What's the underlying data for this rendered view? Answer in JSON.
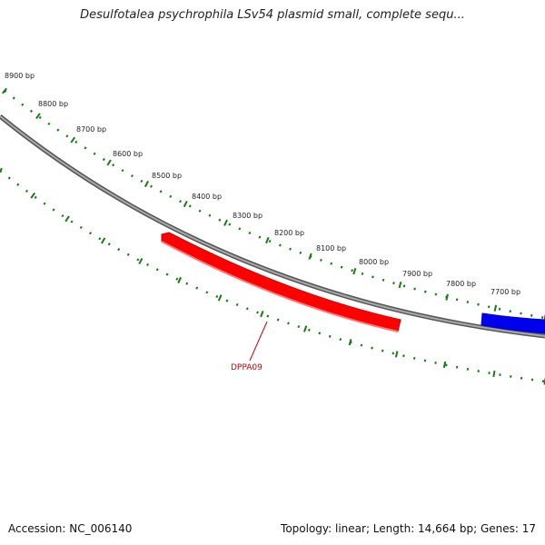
{
  "title": "Desulfotalea psychrophila LSv54 plasmid small, complete sequ...",
  "footer": {
    "accession": "Accession: NC_006140",
    "summary": "Topology: linear; Length: 14,664 bp; Genes: 17"
  },
  "ticks": [
    "8900 bp",
    "8800 bp",
    "8700 bp",
    "8600 bp",
    "8500 bp",
    "8400 bp",
    "8300 bp",
    "8200 bp",
    "8100 bp",
    "8000 bp",
    "7900 bp",
    "7800 bp",
    "7700 bp"
  ],
  "genes": [
    {
      "label": "DPPA09",
      "color": "#ff0000",
      "strand": "reverse"
    },
    {
      "label": "",
      "color": "#0000ff",
      "strand": "forward"
    }
  ],
  "colors": {
    "backbone": "#777777",
    "ticks": "#1a7a1a",
    "label_line": "#cc0000"
  }
}
